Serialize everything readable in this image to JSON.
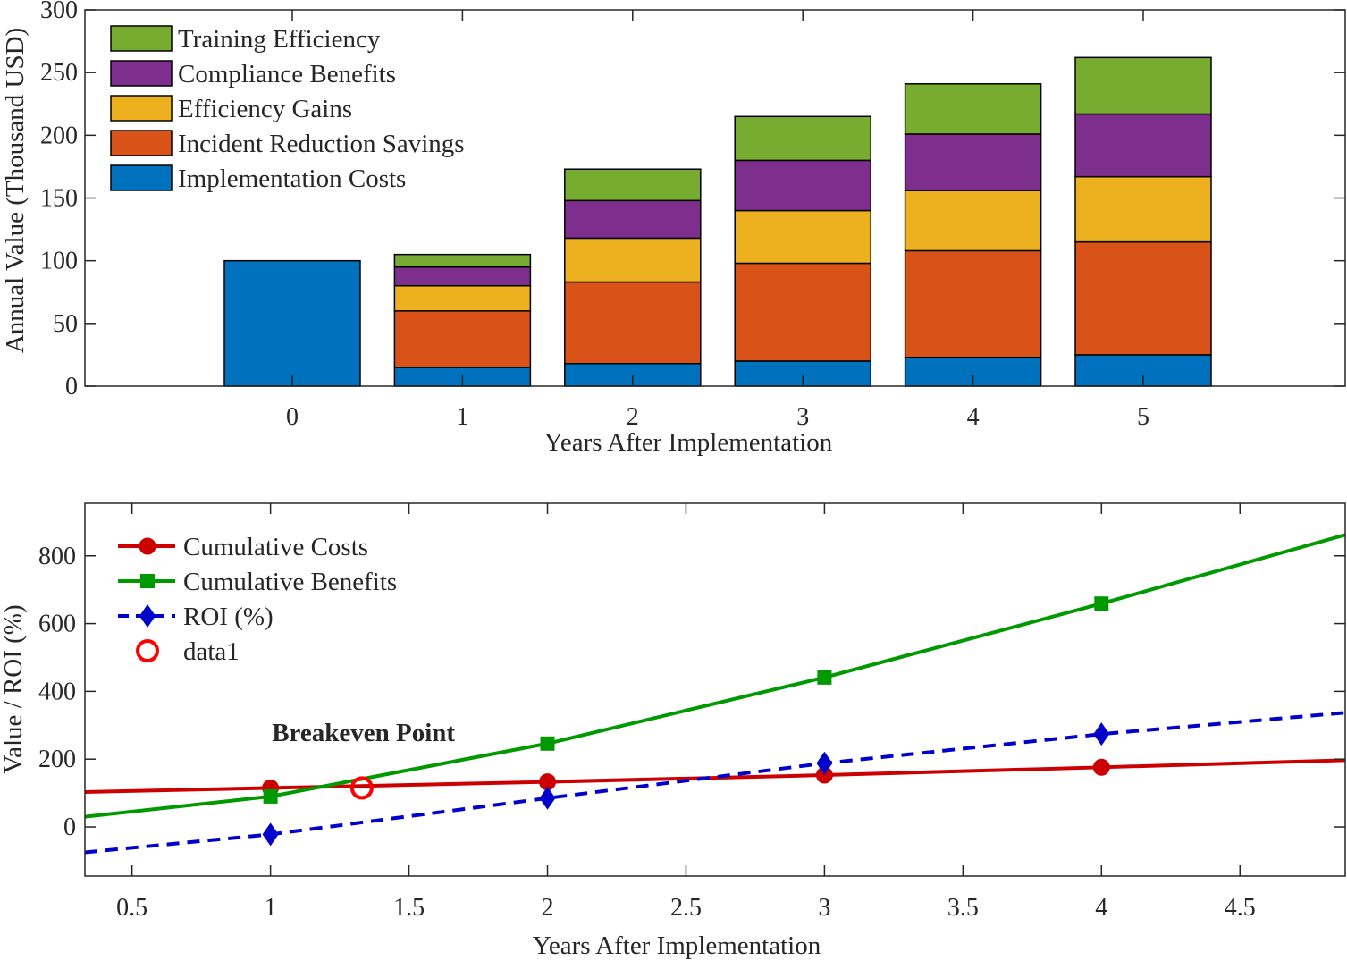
{
  "chart_data": [
    {
      "type": "bar",
      "stacked": true,
      "categories": [
        "0",
        "1",
        "2",
        "3",
        "4",
        "5"
      ],
      "xlabel": "Years After Implementation",
      "ylabel": "Annual Value (Thousand USD)",
      "ylim": [
        0,
        300
      ],
      "yticks": [
        0,
        50,
        100,
        150,
        200,
        250,
        300
      ],
      "legend_position": "top-left",
      "series": [
        {
          "name": "Implementation Costs",
          "color": "#0072BD",
          "values": [
            100,
            15,
            18,
            20,
            23,
            25
          ]
        },
        {
          "name": "Incident Reduction Savings",
          "color": "#D95319",
          "values": [
            0,
            45,
            65,
            78,
            85,
            90
          ]
        },
        {
          "name": "Efficiency Gains",
          "color": "#EDB120",
          "values": [
            0,
            20,
            35,
            42,
            48,
            52
          ]
        },
        {
          "name": "Compliance Benefits",
          "color": "#7E2F8E",
          "values": [
            0,
            15,
            30,
            40,
            45,
            50
          ]
        },
        {
          "name": "Training Efficiency",
          "color": "#77AC30",
          "values": [
            0,
            10,
            25,
            35,
            40,
            45
          ]
        }
      ]
    },
    {
      "type": "line",
      "xlabel": "Years After Implementation",
      "ylabel": "Value / ROI (%)",
      "xlim": [
        0.33,
        4.88
      ],
      "ylim": [
        -145,
        955
      ],
      "xticks": [
        "0.5",
        "1",
        "1.5",
        "2",
        "2.5",
        "3",
        "3.5",
        "4",
        "4.5"
      ],
      "yticks": [
        "0",
        "200",
        "400",
        "600",
        "800"
      ],
      "legend_position": "top-left",
      "series": [
        {
          "name": "Cumulative Costs",
          "color": "#CC0000",
          "marker": "circle",
          "line": "solid",
          "x": [
            1,
            2,
            3,
            4
          ],
          "y": [
            115,
            133,
            153,
            176
          ],
          "line_x": [
            0.33,
            1,
            2,
            3,
            4,
            4.88
          ],
          "line_y": [
            103,
            115,
            133,
            153,
            176,
            197
          ]
        },
        {
          "name": "Cumulative Benefits",
          "color": "#009900",
          "marker": "square",
          "line": "solid",
          "x": [
            1,
            2,
            3,
            4
          ],
          "y": [
            90,
            246,
            441,
            659
          ],
          "line_x": [
            0.33,
            1,
            2,
            3,
            4,
            4.88
          ],
          "line_y": [
            30,
            90,
            246,
            441,
            659,
            862
          ]
        },
        {
          "name": "ROI (%)",
          "color": "#0000CC",
          "marker": "diamond",
          "line": "dashed",
          "x": [
            1,
            2,
            3,
            4
          ],
          "y": [
            -22,
            85,
            188,
            274
          ],
          "line_x": [
            0.33,
            1,
            2,
            3,
            4,
            4.88
          ],
          "line_y": [
            -75,
            -22,
            85,
            188,
            274,
            337
          ]
        },
        {
          "name": "data1",
          "color": "#FF0000",
          "marker": "open-circle",
          "line": "none",
          "x": [
            1.33
          ],
          "y": [
            115
          ]
        }
      ],
      "annotations": [
        {
          "text": "Breakeven Point",
          "x": 1.0,
          "y": 280
        }
      ]
    }
  ]
}
